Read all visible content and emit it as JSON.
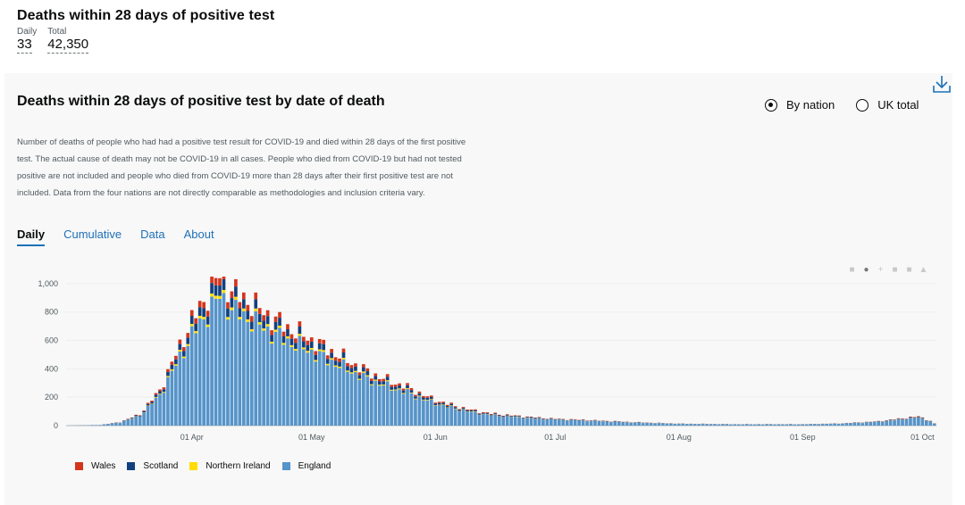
{
  "headline": {
    "title": "Deaths within 28 days of positive test",
    "daily_label": "Daily",
    "daily_value": "33",
    "total_label": "Total",
    "total_value": "42,350"
  },
  "card": {
    "title": "Deaths within 28 days of positive test by date of death",
    "radio_by_nation": "By nation",
    "radio_uk_total": "UK total",
    "description": "Number of deaths of people who had had a positive test result for COVID-19 and died within 28 days of the first positive test. The actual cause of death may not be COVID-19 in all cases. People who died from COVID-19 but had not tested positive are not included and people who died from COVID-19 more than 28 days after their first positive test are not included. Data from the four nations are not directly comparable as methodologies and inclusion criteria vary.",
    "tabs": [
      "Daily",
      "Cumulative",
      "Data",
      "About"
    ],
    "active_tab": "Daily"
  },
  "colors": {
    "wales": "#d4351c",
    "scotland": "#12407f",
    "northern_ireland": "#ffdd00",
    "england": "#5694ca",
    "link": "#1d70b8"
  },
  "chart_data": {
    "type": "bar",
    "stacked": true,
    "x_start": "2020-03-01",
    "x_end": "2020-10-04",
    "xticks": [
      {
        "date": "2020-04-01",
        "label": "01 Apr"
      },
      {
        "date": "2020-05-01",
        "label": "01 May"
      },
      {
        "date": "2020-06-01",
        "label": "01 Jun"
      },
      {
        "date": "2020-07-01",
        "label": "01 Jul"
      },
      {
        "date": "2020-08-01",
        "label": "01 Aug"
      },
      {
        "date": "2020-09-01",
        "label": "01 Sep"
      },
      {
        "date": "2020-10-01",
        "label": "01 Oct"
      }
    ],
    "yticks": [
      {
        "value": 0,
        "label": "0"
      },
      {
        "value": 200,
        "label": "200"
      },
      {
        "value": 400,
        "label": "400"
      },
      {
        "value": 600,
        "label": "600"
      },
      {
        "value": 800,
        "label": "800"
      },
      {
        "value": 1000,
        "label": "1,000"
      }
    ],
    "ylim": [
      0,
      1100
    ],
    "legend": [
      "Wales",
      "Scotland",
      "Northern Ireland",
      "England"
    ],
    "keypoints": [
      [
        "2020-03-01",
        0
      ],
      [
        "2020-03-09",
        5
      ],
      [
        "2020-03-14",
        25
      ],
      [
        "2020-03-19",
        80
      ],
      [
        "2020-03-24",
        250
      ],
      [
        "2020-03-28",
        500
      ],
      [
        "2020-04-01",
        740
      ],
      [
        "2020-04-04",
        880
      ],
      [
        "2020-04-08",
        1060
      ],
      [
        "2020-04-11",
        950
      ],
      [
        "2020-04-15",
        880
      ],
      [
        "2020-04-20",
        780
      ],
      [
        "2020-04-25",
        690
      ],
      [
        "2020-04-30",
        620
      ],
      [
        "2020-05-05",
        540
      ],
      [
        "2020-05-10",
        460
      ],
      [
        "2020-05-15",
        380
      ],
      [
        "2020-05-20",
        320
      ],
      [
        "2020-05-25",
        270
      ],
      [
        "2020-05-31",
        190
      ],
      [
        "2020-06-05",
        145
      ],
      [
        "2020-06-10",
        110
      ],
      [
        "2020-06-15",
        85
      ],
      [
        "2020-06-20",
        72
      ],
      [
        "2020-06-25",
        60
      ],
      [
        "2020-07-01",
        48
      ],
      [
        "2020-07-10",
        38
      ],
      [
        "2020-07-20",
        25
      ],
      [
        "2020-08-01",
        14
      ],
      [
        "2020-08-15",
        10
      ],
      [
        "2020-09-01",
        10
      ],
      [
        "2020-09-10",
        15
      ],
      [
        "2020-09-20",
        30
      ],
      [
        "2020-09-30",
        65
      ],
      [
        "2020-10-03",
        33
      ],
      [
        "2020-10-04",
        15
      ]
    ],
    "share": {
      "wales": 0.05,
      "scotland": 0.07,
      "northern_ireland": 0.02,
      "england": 0.86
    }
  }
}
